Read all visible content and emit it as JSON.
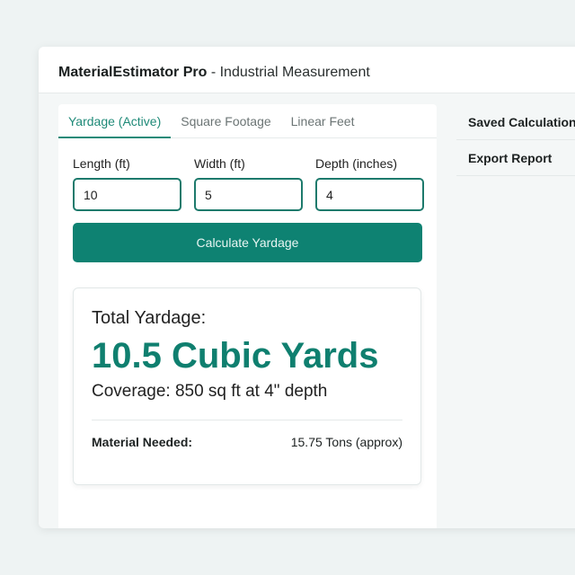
{
  "header": {
    "app_name": "MaterialEstimator Pro",
    "subtitle": " - Industrial Measurement"
  },
  "tabs": [
    {
      "label": "Yardage (Active)"
    },
    {
      "label": "Square Footage"
    },
    {
      "label": "Linear Feet"
    }
  ],
  "fields": [
    {
      "label": "Length (ft)",
      "value": "10"
    },
    {
      "label": "Width (ft)",
      "value": "5"
    },
    {
      "label": "Depth (inches)",
      "value": "4"
    }
  ],
  "calculate_label": "Calculate Yardage",
  "result": {
    "label": "Total Yardage:",
    "value": "10.5 Cubic Yards",
    "coverage": "Coverage: 850 sq ft at 4\" depth",
    "material_label": "Material Needed:",
    "material_value": "15.75 Tons (approx)"
  },
  "sidebar": {
    "items": [
      {
        "label": "Saved Calculations"
      },
      {
        "label": "Export Report"
      }
    ]
  },
  "colors": {
    "accent": "#0e8272"
  }
}
